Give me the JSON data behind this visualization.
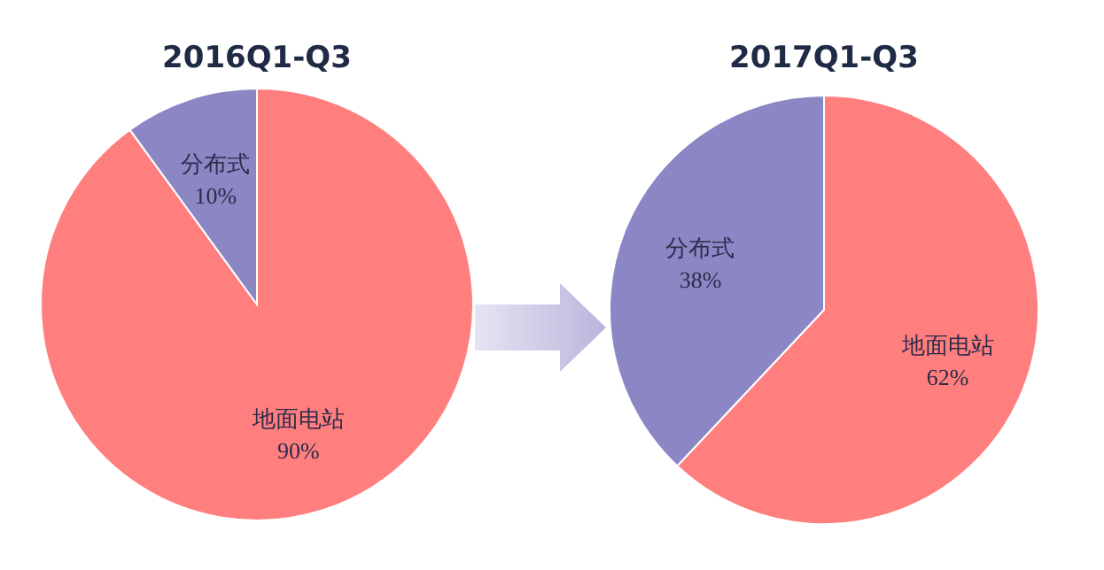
{
  "chart_data": [
    {
      "type": "pie",
      "title": "2016Q1-Q3",
      "categories": [
        "地面电站",
        "分布式"
      ],
      "values": [
        90,
        10
      ],
      "colors": [
        "#ff7f7f",
        "#8b87c5"
      ],
      "value_labels": [
        "90%",
        "10%"
      ]
    },
    {
      "type": "pie",
      "title": "2017Q1-Q3",
      "categories": [
        "地面电站",
        "分布式"
      ],
      "values": [
        62,
        38
      ],
      "colors": [
        "#ff7f7f",
        "#8b87c5"
      ],
      "value_labels": [
        "62%",
        "38%"
      ]
    }
  ]
}
